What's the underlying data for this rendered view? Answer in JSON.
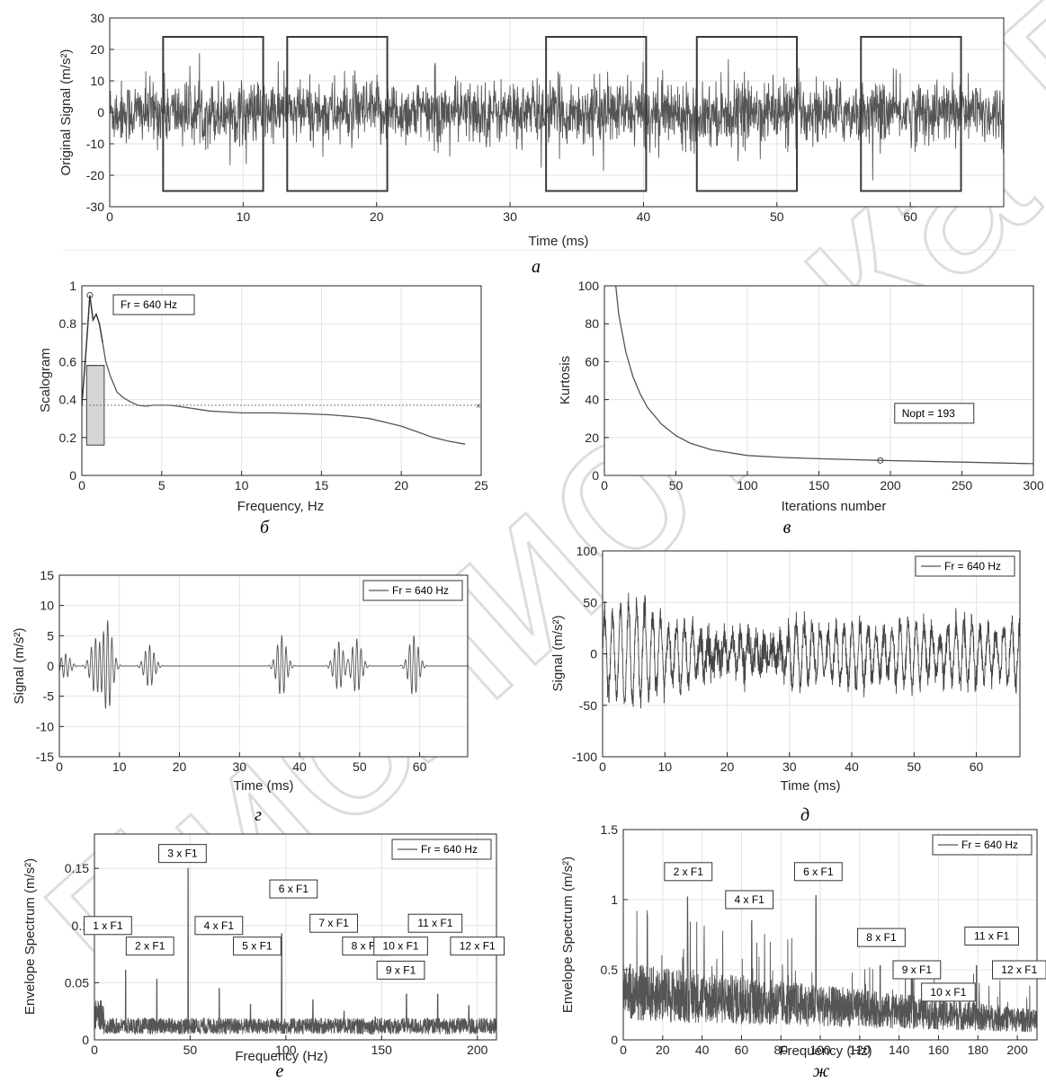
{
  "watermark": "Библиотека БГУИР",
  "chart_data": [
    {
      "id": "a",
      "type": "line",
      "panel_label": "а",
      "xlabel": "Time (ms)",
      "ylabel": "Original Signal (m/s²)",
      "xlim": [
        0,
        67
      ],
      "ylim": [
        -30,
        30
      ],
      "xticks": [
        0,
        10,
        20,
        30,
        40,
        50,
        60
      ],
      "yticks": [
        -30,
        -20,
        -10,
        0,
        10,
        20,
        30
      ],
      "grid": true,
      "series": [
        {
          "kind": "noise",
          "amplitude": 9,
          "peak": 28,
          "color": "#555555"
        }
      ],
      "boxes": [
        [
          4,
          11.5,
          -25,
          24
        ],
        [
          13.3,
          20.8,
          -25,
          24
        ],
        [
          32.7,
          40.2,
          -25,
          24
        ],
        [
          44,
          51.5,
          -25,
          24
        ],
        [
          56.3,
          63.8,
          -25,
          24
        ]
      ]
    },
    {
      "id": "b",
      "type": "line",
      "panel_label": "б",
      "xlabel": "Frequency, Hz",
      "ylabel": "Scalogram",
      "xlim": [
        0,
        25
      ],
      "ylim": [
        0,
        1
      ],
      "xticks": [
        0,
        5,
        10,
        15,
        20,
        25
      ],
      "yticks": [
        0,
        0.2,
        0.4,
        0.6,
        0.8,
        1
      ],
      "grid": true,
      "legend": "Fr = 640 Hz",
      "series": [
        {
          "x": [
            0,
            0.3,
            0.5,
            0.7,
            0.9,
            1.1,
            1.3,
            1.5,
            1.8,
            2.2,
            2.6,
            3,
            3.5,
            4,
            4.5,
            5,
            5.5,
            6,
            8,
            10,
            12,
            14,
            15.5,
            17,
            18,
            19,
            20,
            21,
            22,
            23,
            24
          ],
          "y": [
            0.37,
            0.7,
            0.95,
            0.82,
            0.85,
            0.8,
            0.7,
            0.6,
            0.52,
            0.44,
            0.41,
            0.39,
            0.37,
            0.365,
            0.37,
            0.37,
            0.37,
            0.365,
            0.34,
            0.33,
            0.33,
            0.325,
            0.32,
            0.31,
            0.3,
            0.28,
            0.26,
            0.23,
            0.2,
            0.18,
            0.165
          ],
          "color": "#555555"
        }
      ],
      "threshold": 0.37,
      "shaded_band": [
        0.3,
        1.4,
        0.16,
        0.58
      ]
    },
    {
      "id": "c",
      "type": "line",
      "panel_label": "в",
      "xlabel": "Iterations number",
      "ylabel": "Kurtosis",
      "xlim": [
        0,
        300
      ],
      "ylim": [
        0,
        100
      ],
      "xticks": [
        0,
        50,
        100,
        150,
        200,
        250,
        300
      ],
      "yticks": [
        0,
        20,
        40,
        60,
        80,
        100
      ],
      "grid": true,
      "legend": "Nopt = 193",
      "series": [
        {
          "x": [
            8,
            10,
            15,
            20,
            25,
            30,
            40,
            50,
            60,
            75,
            100,
            125,
            150,
            175,
            193,
            200,
            250,
            300
          ],
          "y": [
            100,
            85,
            65,
            52,
            43,
            36,
            27,
            21,
            17,
            13.5,
            10.5,
            9.5,
            8.8,
            8.3,
            7.9,
            7.8,
            7,
            6.2
          ],
          "color": "#555555"
        }
      ],
      "marker": [
        193,
        7.9
      ]
    },
    {
      "id": "d",
      "type": "line",
      "panel_label": "г",
      "xlabel": "Time (ms)",
      "ylabel": "Signal (m/s²)",
      "xlim": [
        0,
        68
      ],
      "ylim": [
        -15,
        15
      ],
      "xticks": [
        0,
        10,
        20,
        30,
        40,
        50,
        60
      ],
      "yticks": [
        -15,
        -10,
        -5,
        0,
        5,
        10,
        15
      ],
      "grid": true,
      "legend": "Fr = 640 Hz",
      "series": [
        {
          "kind": "bursts",
          "color": "#555555",
          "bursts": [
            [
              1,
              2
            ],
            [
              6,
              4.5
            ],
            [
              8,
              7.5
            ],
            [
              15,
              3.5
            ],
            [
              37,
              5
            ],
            [
              46.5,
              4
            ],
            [
              49.5,
              4.5
            ],
            [
              59,
              5
            ]
          ]
        }
      ]
    },
    {
      "id": "e",
      "type": "line",
      "panel_label": "д",
      "xlabel": "Time (ms)",
      "ylabel": "Signal (m/s²)",
      "xlim": [
        0,
        67
      ],
      "ylim": [
        -100,
        100
      ],
      "xticks": [
        0,
        10,
        20,
        30,
        40,
        50,
        60
      ],
      "yticks": [
        -100,
        -50,
        0,
        50,
        100
      ],
      "grid": true,
      "legend": "Fr = 640 Hz",
      "series": [
        {
          "kind": "oscillation",
          "amplitude": 25,
          "peak": 60,
          "color": "#444444"
        }
      ]
    },
    {
      "id": "f",
      "type": "line",
      "panel_label": "е",
      "xlabel": "Frequency (Hz)",
      "ylabel": "Envelope Spectrum (m/s²)",
      "xlim": [
        0,
        210
      ],
      "ylim": [
        0,
        0.18
      ],
      "xticks": [
        0,
        50,
        100,
        150,
        200
      ],
      "yticks": [
        0,
        0.05,
        0.1,
        0.15
      ],
      "grid": true,
      "legend": "Fr = 640 Hz",
      "series": [
        {
          "kind": "spectrum",
          "floor": 0.012,
          "color": "#555555",
          "peaks": [
            [
              16.3,
              0.061
            ],
            [
              32.6,
              0.053
            ],
            [
              48.9,
              0.15
            ],
            [
              65.2,
              0.045
            ],
            [
              81.5,
              0.031
            ],
            [
              97.8,
              0.093
            ],
            [
              114.1,
              0.035
            ],
            [
              130.4,
              0.025
            ],
            [
              146.7,
              0.02
            ],
            [
              163,
              0.04
            ],
            [
              179.3,
              0.04
            ],
            [
              195.6,
              0.03
            ]
          ]
        }
      ],
      "annotations": [
        {
          "text": "1 x F1",
          "x": 7,
          "y": 0.1
        },
        {
          "text": "2 x F1",
          "x": 29,
          "y": 0.082
        },
        {
          "text": "3 x F1",
          "x": 46,
          "y": 0.163
        },
        {
          "text": "4 x F1",
          "x": 65,
          "y": 0.1
        },
        {
          "text": "5 x F1",
          "x": 85,
          "y": 0.082
        },
        {
          "text": "6 x F1",
          "x": 104,
          "y": 0.132
        },
        {
          "text": "7 x F1",
          "x": 125,
          "y": 0.102
        },
        {
          "text": "8 x F1",
          "x": 142,
          "y": 0.082
        },
        {
          "text": "9 x F1",
          "x": 160,
          "y": 0.061
        },
        {
          "text": "10 x F1",
          "x": 160,
          "y": 0.082
        },
        {
          "text": "11 x F1",
          "x": 178,
          "y": 0.102
        },
        {
          "text": "12 x F1",
          "x": 200,
          "y": 0.082
        }
      ]
    },
    {
      "id": "g",
      "type": "line",
      "panel_label": "ж",
      "xlabel": "Frequency (Hz)",
      "ylabel": "Envelope Spectrum (m/s²)",
      "xlim": [
        0,
        210
      ],
      "ylim": [
        0,
        1.5
      ],
      "xticks": [
        0,
        20,
        40,
        60,
        80,
        100,
        120,
        140,
        160,
        180,
        200
      ],
      "yticks": [
        0,
        0.5,
        1,
        1.5
      ],
      "grid": true,
      "legend": "Fr = 640 Hz",
      "series": [
        {
          "kind": "spectrum2",
          "color": "#555555",
          "peaks": [
            [
              32.6,
              1.02
            ],
            [
              65.2,
              0.85
            ],
            [
              97.8,
              1.03
            ],
            [
              130.4,
              0.53
            ],
            [
              146.7,
              0.43
            ],
            [
              163,
              0.35
            ],
            [
              179.3,
              0.53
            ],
            [
              195.6,
              0.22
            ]
          ]
        }
      ],
      "annotations": [
        {
          "text": "2 x F1",
          "x": 33,
          "y": 1.2
        },
        {
          "text": "4 x F1",
          "x": 64,
          "y": 1
        },
        {
          "text": "6 x F1",
          "x": 99,
          "y": 1.2
        },
        {
          "text": "8 x F1",
          "x": 131,
          "y": 0.73
        },
        {
          "text": "9 x F1",
          "x": 149,
          "y": 0.5
        },
        {
          "text": "10 x F1",
          "x": 165,
          "y": 0.34
        },
        {
          "text": "11 x F1",
          "x": 187,
          "y": 0.74
        },
        {
          "text": "12 x F1",
          "x": 201,
          "y": 0.5
        }
      ]
    }
  ]
}
